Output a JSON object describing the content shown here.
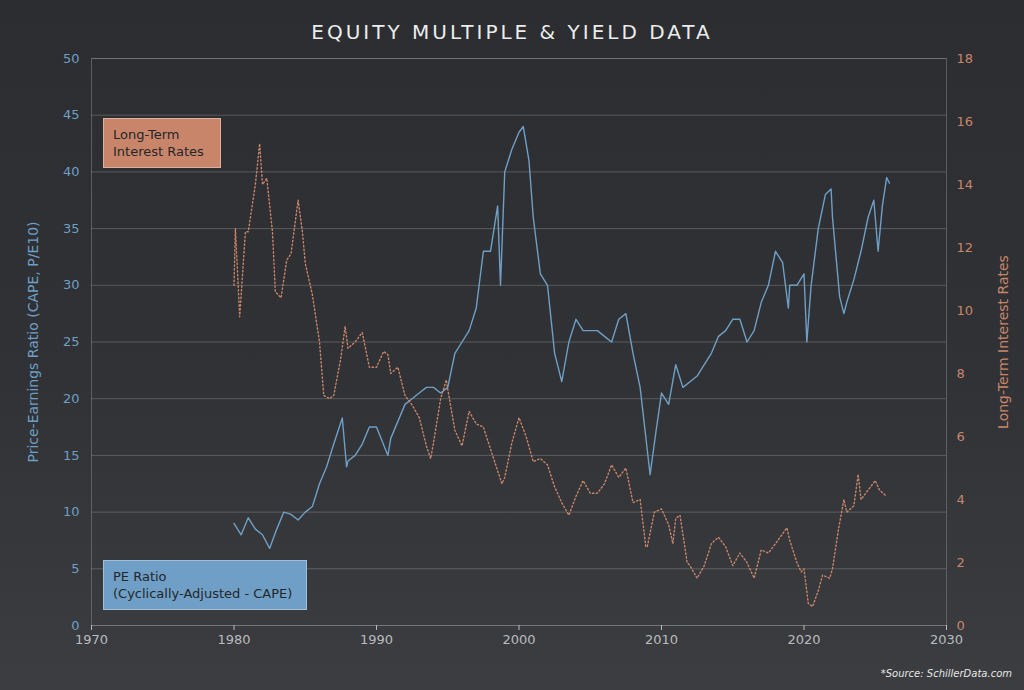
{
  "chart_data": {
    "type": "line",
    "title": "EQUITY MULTIPLE & YIELD DATA",
    "ylabel": "Price-Earnings Ratio (CAPE, P/E10)",
    "y2label": "Long-Term Interest Rates",
    "annotations": [
      "*Source: SchillerData.com"
    ],
    "xlim": [
      1970,
      2030
    ],
    "xticks": [
      1970,
      1980,
      1990,
      2000,
      2010,
      2020,
      2030
    ],
    "ylim": [
      0,
      50
    ],
    "yticks": [
      0,
      5,
      10,
      15,
      20,
      25,
      30,
      35,
      40,
      45,
      50
    ],
    "y2lim": [
      0,
      18
    ],
    "y2ticks": [
      0,
      2,
      4,
      6,
      8,
      10,
      12,
      14,
      16,
      18
    ],
    "grid": true,
    "legend": "left",
    "series": [
      {
        "name": "Long-Term Interest Rates",
        "color": "#c9856a",
        "axis": "y2",
        "line_style": "dotted",
        "x": [
          1980,
          1980.1,
          1980.4,
          1980.8,
          1981,
          1981.5,
          1981.8,
          1982,
          1982.3,
          1982.7,
          1982.9,
          1983.3,
          1983.7,
          1984,
          1984.5,
          1984.8,
          1985,
          1985.5,
          1986,
          1986.3,
          1986.7,
          1987,
          1987.5,
          1987.8,
          1988,
          1988.5,
          1989,
          1989.5,
          1990,
          1990.5,
          1990.8,
          1991,
          1991.5,
          1992,
          1992.5,
          1993,
          1993.5,
          1993.8,
          1994,
          1994.5,
          1994.9,
          1995,
          1995.5,
          1996,
          1996.5,
          1997,
          1997.5,
          1998,
          1998.8,
          1999,
          1999.5,
          2000,
          2000.5,
          2001,
          2001.5,
          2002,
          2002.5,
          2003,
          2003.5,
          2004,
          2004.5,
          2005,
          2005.5,
          2006,
          2006.5,
          2007,
          2007.5,
          2008,
          2008.5,
          2008.9,
          2009,
          2009.5,
          2010,
          2010.5,
          2010.8,
          2011,
          2011.3,
          2011.8,
          2012,
          2012.5,
          2013,
          2013.5,
          2014,
          2014.5,
          2015,
          2015.5,
          2016,
          2016.5,
          2017,
          2017.5,
          2018,
          2018.8,
          2019,
          2019.5,
          2019.8,
          2020,
          2020.3,
          2020.6,
          2021,
          2021.3,
          2021.8,
          2022,
          2022.4,
          2022.8,
          2023,
          2023.5,
          2023.8,
          2024,
          2024.5,
          2025,
          2025.3,
          2025.8
        ],
        "values": [
          10.8,
          12.6,
          9.8,
          12.5,
          12.5,
          14,
          15.3,
          14,
          14.2,
          12.5,
          10.6,
          10.4,
          11.6,
          11.8,
          13.5,
          12.5,
          11.5,
          10.5,
          9,
          7.3,
          7.2,
          7.3,
          8.5,
          9.5,
          8.8,
          9,
          9.3,
          8.2,
          8.2,
          8.7,
          8.6,
          8,
          8.2,
          7.3,
          7,
          6.6,
          5.7,
          5.3,
          5.8,
          7.2,
          7.8,
          7.5,
          6.2,
          5.7,
          6.8,
          6.4,
          6.3,
          5.6,
          4.5,
          4.7,
          5.8,
          6.6,
          6,
          5.2,
          5.3,
          5.1,
          4.4,
          3.9,
          3.5,
          4.1,
          4.6,
          4.2,
          4.2,
          4.5,
          5.1,
          4.7,
          5,
          3.9,
          4,
          2.5,
          2.5,
          3.6,
          3.7,
          3.2,
          2.6,
          3.4,
          3.5,
          2,
          1.9,
          1.5,
          1.9,
          2.6,
          2.8,
          2.5,
          1.9,
          2.3,
          2,
          1.5,
          2.4,
          2.3,
          2.6,
          3.1,
          2.7,
          2,
          1.7,
          1.8,
          0.7,
          0.6,
          1.1,
          1.6,
          1.5,
          1.8,
          3,
          4,
          3.6,
          3.8,
          4.8,
          4,
          4.3,
          4.6,
          4.3,
          4.1
        ]
      },
      {
        "name": "PE Ratio (Cyclically-Adjusted - CAPE)",
        "color": "#6f9fc6",
        "line_style": "solid",
        "x": [
          1980,
          1980.5,
          1981,
          1981.5,
          1982,
          1982.5,
          1983,
          1983.5,
          1984,
          1984.5,
          1985,
          1985.5,
          1986,
          1986.5,
          1987,
          1987.6,
          1987.9,
          1988,
          1988.5,
          1989,
          1989.5,
          1990,
          1990.8,
          1991,
          1991.5,
          1992,
          1992.5,
          1993,
          1993.5,
          1994,
          1994.5,
          1995,
          1995.5,
          1996,
          1996.5,
          1997,
          1997.5,
          1998,
          1998.5,
          1998.7,
          1999,
          1999.5,
          2000,
          2000.3,
          2000.7,
          2001,
          2001.5,
          2002,
          2002.5,
          2003,
          2003.5,
          2004,
          2004.5,
          2005,
          2005.5,
          2006,
          2006.5,
          2007,
          2007.5,
          2008,
          2008.5,
          2009,
          2009.2,
          2009.6,
          2010,
          2010.5,
          2011,
          2011.5,
          2012,
          2012.5,
          2013,
          2013.5,
          2014,
          2014.5,
          2015,
          2015.5,
          2016,
          2016.5,
          2017,
          2017.5,
          2018,
          2018.5,
          2018.9,
          2019,
          2019.5,
          2020,
          2020.2,
          2020.5,
          2021,
          2021.5,
          2021.9,
          2022,
          2022.5,
          2022.8,
          2023,
          2023.5,
          2024,
          2024.5,
          2024.9,
          2025.2,
          2025.5,
          2025.8,
          2026
        ],
        "values": [
          9,
          8,
          9.5,
          8.5,
          8,
          6.8,
          8.5,
          10,
          9.8,
          9.3,
          10,
          10.5,
          12.5,
          14,
          16,
          18.3,
          14,
          14.5,
          15,
          16,
          17.5,
          17.5,
          15,
          16.5,
          18,
          19.5,
          20,
          20.5,
          21,
          21,
          20.5,
          21,
          24,
          25,
          26,
          28,
          33,
          33,
          37,
          30,
          40,
          42,
          43.5,
          44,
          41,
          36,
          31,
          30,
          24,
          21.5,
          25,
          27,
          26,
          26,
          26,
          25.5,
          25,
          27,
          27.5,
          24,
          21,
          15.5,
          13.3,
          17,
          20.5,
          19.5,
          23,
          21,
          21.5,
          22,
          23,
          24,
          25.5,
          26,
          27,
          27,
          25,
          26,
          28.5,
          30,
          33,
          32,
          28,
          30,
          30,
          31,
          25,
          30,
          35,
          38,
          38.5,
          36,
          29,
          27.5,
          28.5,
          30.5,
          33,
          36,
          37.5,
          33,
          37,
          39.5,
          39
        ]
      }
    ]
  }
}
